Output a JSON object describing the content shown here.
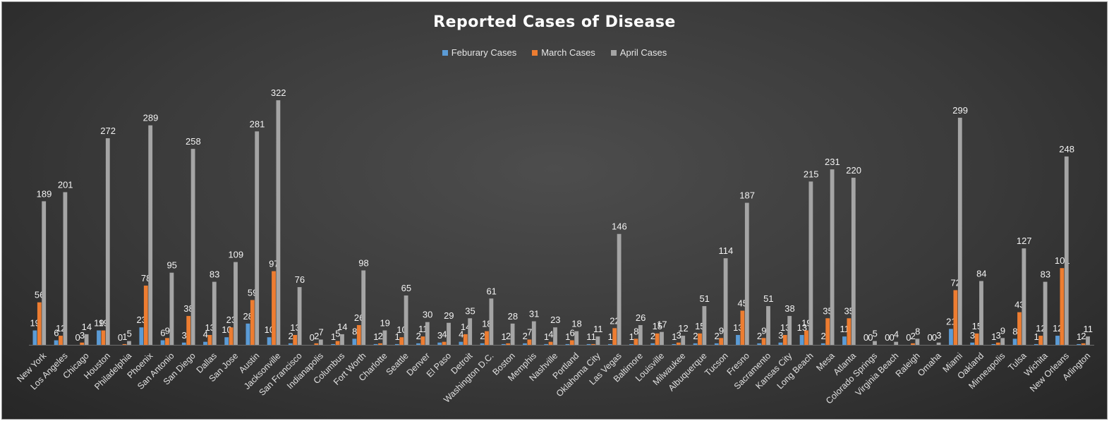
{
  "chart_data": {
    "type": "bar",
    "title": "Reported Cases of Disease",
    "legend_position": "top",
    "grid": false,
    "ylim": [
      0,
      350
    ],
    "categories": [
      "New York",
      "Los Angeles",
      "Chicago",
      "Houston",
      "Philadelphia",
      "Phoenix",
      "San Antonio",
      "San Diego",
      "Dallas",
      "San Jose",
      "Austin",
      "Jacksonville",
      "San Francisco",
      "Indianapolis",
      "Columbus",
      "Fort Worth",
      "Charlotte",
      "Seattle",
      "Denver",
      "El Paso",
      "Detroit",
      "Washington D.C.",
      "Boston",
      "Memphis",
      "Nashville",
      "Portland",
      "Oklahoma City",
      "Las Vegas",
      "Baltimore",
      "Louisville",
      "Milwaukee",
      "Albuquerque",
      "Tucson",
      "Fresno",
      "Sacramento",
      "Kansas City",
      "Long Beach",
      "Mesa",
      "Atlanta",
      "Colorado Springs",
      "Virginia Beach",
      "Raleigh",
      "Omaha",
      "Miami",
      "Oakland",
      "Minneapolis",
      "Tulsa",
      "Wichita",
      "New Orleans",
      "Arlington"
    ],
    "series": [
      {
        "name": "Feburary Cases",
        "color": "#5b9bd5",
        "values": [
          19,
          6,
          0,
          19,
          0,
          23,
          6,
          3,
          4,
          10,
          28,
          10,
          2,
          0,
          1,
          8,
          1,
          1,
          2,
          3,
          4,
          2,
          1,
          2,
          1,
          1,
          1,
          1,
          1,
          2,
          1,
          2,
          2,
          13,
          2,
          3,
          13,
          2,
          11,
          0,
          0,
          0,
          0,
          21,
          3,
          1,
          8,
          1,
          12,
          1
        ]
      },
      {
        "name": "March Cases",
        "color": "#ed7d31",
        "values": [
          56,
          12,
          3,
          19,
          1,
          78,
          9,
          38,
          13,
          23,
          59,
          97,
          13,
          2,
          5,
          26,
          2,
          10,
          11,
          4,
          14,
          18,
          2,
          7,
          4,
          6,
          1,
          22,
          8,
          15,
          3,
          15,
          9,
          45,
          9,
          13,
          19,
          35,
          35,
          0,
          0,
          2,
          0,
          72,
          15,
          3,
          43,
          12,
          101,
          2
        ]
      },
      {
        "name": "April Cases",
        "color": "#a5a5a5",
        "values": [
          189,
          201,
          14,
          272,
          5,
          289,
          95,
          258,
          83,
          109,
          281,
          322,
          76,
          7,
          14,
          98,
          19,
          65,
          30,
          29,
          35,
          61,
          28,
          31,
          23,
          18,
          11,
          146,
          26,
          17,
          12,
          51,
          114,
          187,
          51,
          38,
          215,
          231,
          220,
          5,
          4,
          8,
          3,
          299,
          84,
          9,
          127,
          83,
          248,
          11
        ]
      }
    ]
  }
}
